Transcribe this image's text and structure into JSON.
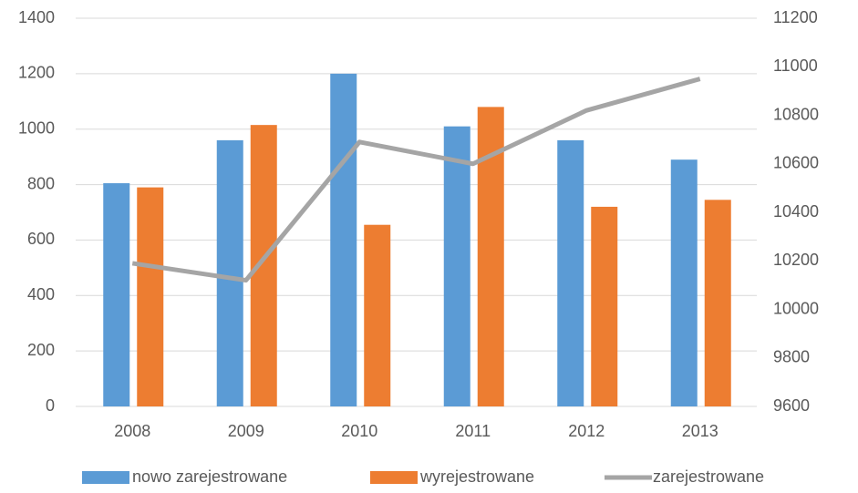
{
  "chart_data": {
    "type": "bar_line",
    "categories": [
      "2008",
      "2009",
      "2010",
      "2011",
      "2012",
      "2013"
    ],
    "series": [
      {
        "name": "nowo zarejestrowane",
        "color": "#5b9bd5",
        "type": "bar",
        "values": [
          805,
          960,
          1200,
          1010,
          960,
          890
        ]
      },
      {
        "name": "wyrejestrowane",
        "color": "#ed7d31",
        "type": "bar",
        "values": [
          790,
          1015,
          655,
          1080,
          720,
          745
        ]
      },
      {
        "name": "zarejestrowane",
        "color": "#a5a5a5",
        "type": "line",
        "axis": "y2",
        "values": [
          10190,
          10120,
          10690,
          10600,
          10820,
          10950
        ]
      }
    ],
    "ylim": [
      0,
      1400
    ],
    "yticks": [
      0,
      200,
      400,
      600,
      800,
      1000,
      1200,
      1400
    ],
    "y2lim": [
      9600,
      11200
    ],
    "y2ticks": [
      9600,
      9800,
      10000,
      10200,
      10400,
      10600,
      10800,
      11000,
      11200
    ],
    "grid": true,
    "legend": "bottom"
  }
}
